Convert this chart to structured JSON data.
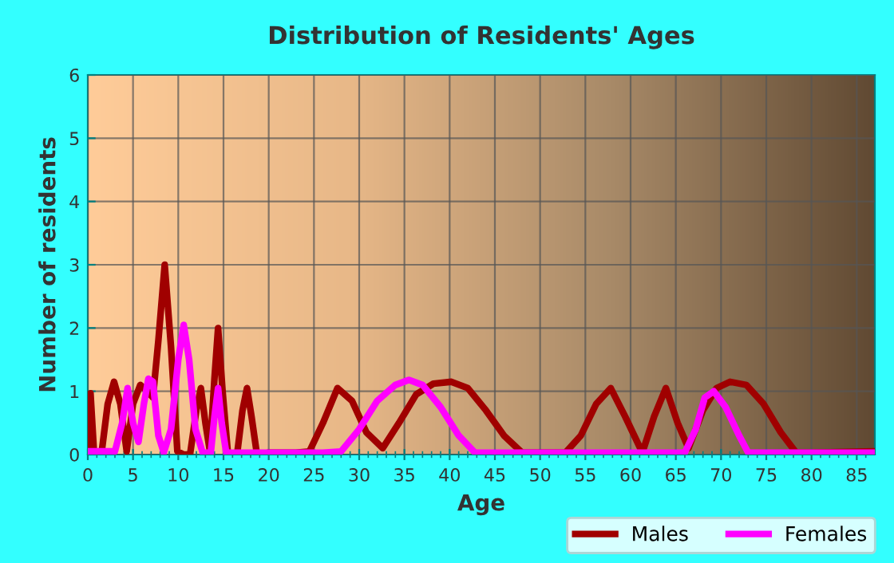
{
  "chart_data": {
    "type": "line",
    "title": "Distribution of Residents' Ages",
    "xlabel": "Age",
    "ylabel": "Number of residents",
    "xlim": [
      0,
      87
    ],
    "ylim": [
      0,
      6
    ],
    "yticks": [
      0,
      1,
      2,
      3,
      4,
      5,
      6
    ],
    "xticks": [
      0,
      {
        "value": 1,
        "label": null
      },
      {
        "value": 2,
        "label": null
      },
      {
        "value": 3,
        "label": null
      },
      {
        "value": 4,
        "label": null
      },
      5,
      {
        "value": 6,
        "label": null
      },
      {
        "value": 7,
        "label": null
      },
      {
        "value": 8,
        "label": null
      },
      {
        "value": 9,
        "label": null
      },
      10,
      {
        "value": 11,
        "label": null
      },
      {
        "value": 12,
        "label": null
      },
      {
        "value": 13,
        "label": null
      },
      {
        "value": 14,
        "label": null
      },
      15,
      {
        "value": 16,
        "label": null
      },
      {
        "value": 17,
        "label": null
      },
      {
        "value": 18,
        "label": null
      },
      {
        "value": 19,
        "label": null
      },
      20,
      {
        "value": 21,
        "label": null
      },
      {
        "value": 22,
        "label": null
      },
      {
        "value": 23,
        "label": null
      },
      {
        "value": 24,
        "label": null
      },
      25,
      {
        "value": 26,
        "label": null
      },
      {
        "value": 27,
        "label": null
      },
      {
        "value": 28,
        "label": null
      },
      {
        "value": 29,
        "label": null
      },
      30,
      {
        "value": 31,
        "label": null
      },
      {
        "value": 32,
        "label": null
      },
      {
        "value": 33,
        "label": null
      },
      {
        "value": 34,
        "label": null
      },
      35,
      {
        "value": 36,
        "label": null
      },
      {
        "value": 37,
        "label": null
      },
      {
        "value": 38,
        "label": null
      },
      {
        "value": 39,
        "label": null
      },
      40,
      {
        "value": 41,
        "label": null
      },
      {
        "value": 42,
        "label": null
      },
      {
        "value": 43,
        "label": null
      },
      {
        "value": 44,
        "label": null
      },
      45,
      {
        "value": 46,
        "label": null
      },
      {
        "value": 47,
        "label": null
      },
      {
        "value": 48,
        "label": null
      },
      {
        "value": 49,
        "label": null
      },
      50,
      {
        "value": 51,
        "label": null
      },
      {
        "value": 52,
        "label": null
      },
      {
        "value": 53,
        "label": null
      },
      {
        "value": 54,
        "label": null
      },
      55,
      {
        "value": 56,
        "label": null
      },
      {
        "value": 57,
        "label": null
      },
      {
        "value": 58,
        "label": null
      },
      {
        "value": 59,
        "label": null
      },
      60,
      {
        "value": 61,
        "label": null
      },
      {
        "value": 62,
        "label": null
      },
      {
        "value": 63,
        "label": null
      },
      {
        "value": 64,
        "label": null
      },
      65,
      {
        "value": 66,
        "label": null
      },
      {
        "value": 67,
        "label": null
      },
      {
        "value": 68,
        "label": null
      },
      {
        "value": 69,
        "label": null
      },
      70,
      {
        "value": 71,
        "label": null
      },
      {
        "value": 72,
        "label": null
      },
      {
        "value": 73,
        "label": null
      },
      {
        "value": 74,
        "label": null
      },
      75,
      {
        "value": 76,
        "label": null
      },
      {
        "value": 77,
        "label": null
      },
      {
        "value": 78,
        "label": null
      },
      {
        "value": 79,
        "label": null
      },
      80,
      {
        "value": 81,
        "label": null
      },
      {
        "value": 82,
        "label": null
      },
      {
        "value": 83,
        "label": null
      },
      {
        "value": 84,
        "label": null
      },
      85,
      {
        "value": 86,
        "label": null
      }
    ],
    "grid": true,
    "legend": "bottom right",
    "marker": "none",
    "line_style": "solid",
    "series": [
      {
        "name": "Males",
        "color": "#a00000",
        "x": [
          0,
          0.3,
          0.7,
          1.5,
          2.2,
          2.9,
          3.6,
          4.3,
          5.0,
          5.8,
          6.6,
          7.2,
          7.8,
          8.5,
          9.2,
          9.9,
          10.6,
          11.3,
          12.0,
          12.5,
          13.0,
          13.5,
          14.0,
          14.4,
          14.9,
          15.5,
          16.5,
          17.1,
          17.6,
          18.1,
          18.7,
          20.0,
          23.0,
          24.5,
          26.0,
          27.6,
          29.2,
          30.8,
          32.6,
          34.4,
          36.3,
          38.2,
          40.2,
          42.0,
          44.0,
          46.0,
          48.0,
          52.8,
          54.5,
          56.2,
          57.8,
          59.4,
          61.3,
          62.6,
          63.9,
          65.2,
          66.4,
          68.0,
          69.5,
          71.0,
          72.8,
          74.7,
          76.6,
          78.3,
          80.0,
          87.0
        ],
        "values": [
          0,
          0.97,
          0,
          0,
          0.8,
          1.15,
          0.8,
          0.05,
          0.8,
          1.1,
          1.0,
          0.9,
          1.8,
          3.0,
          1.7,
          0.05,
          0,
          0,
          0.7,
          1.05,
          0.5,
          0.05,
          1.2,
          2.0,
          1.0,
          0,
          0,
          0.7,
          1.05,
          0.6,
          0,
          0.03,
          0.03,
          0.05,
          0.5,
          1.05,
          0.85,
          0.35,
          0.1,
          0.5,
          0.95,
          1.12,
          1.15,
          1.05,
          0.7,
          0.3,
          0.03,
          0.03,
          0.3,
          0.8,
          1.05,
          0.6,
          0.03,
          0.6,
          1.05,
          0.5,
          0.1,
          0.7,
          1.05,
          1.15,
          1.1,
          0.8,
          0.35,
          0.03,
          0.03,
          0.05
        ]
      },
      {
        "name": "Females",
        "color": "#ff00ff",
        "x": [
          0,
          3.0,
          3.8,
          4.4,
          5.0,
          5.6,
          6.2,
          6.7,
          7.2,
          7.8,
          8.4,
          9.2,
          10.0,
          10.6,
          11.2,
          11.9,
          12.7,
          13.6,
          14.0,
          14.4,
          14.8,
          15.3,
          26.0,
          28.0,
          30.0,
          32.0,
          34.0,
          35.5,
          37.0,
          39.0,
          41.0,
          42.8,
          66.0,
          67.2,
          68.2,
          69.2,
          70.5,
          72.0,
          73.0,
          87.0
        ],
        "values": [
          0.05,
          0.05,
          0.5,
          1.05,
          0.5,
          0.2,
          0.8,
          1.2,
          1.15,
          0.3,
          0.03,
          0.4,
          1.5,
          2.05,
          1.5,
          0.4,
          0.03,
          0.03,
          0.6,
          1.05,
          0.5,
          0.03,
          0.03,
          0.05,
          0.4,
          0.85,
          1.1,
          1.18,
          1.1,
          0.75,
          0.3,
          0.03,
          0.03,
          0.4,
          0.9,
          1.0,
          0.75,
          0.3,
          0.03,
          0.03
        ]
      }
    ]
  }
}
